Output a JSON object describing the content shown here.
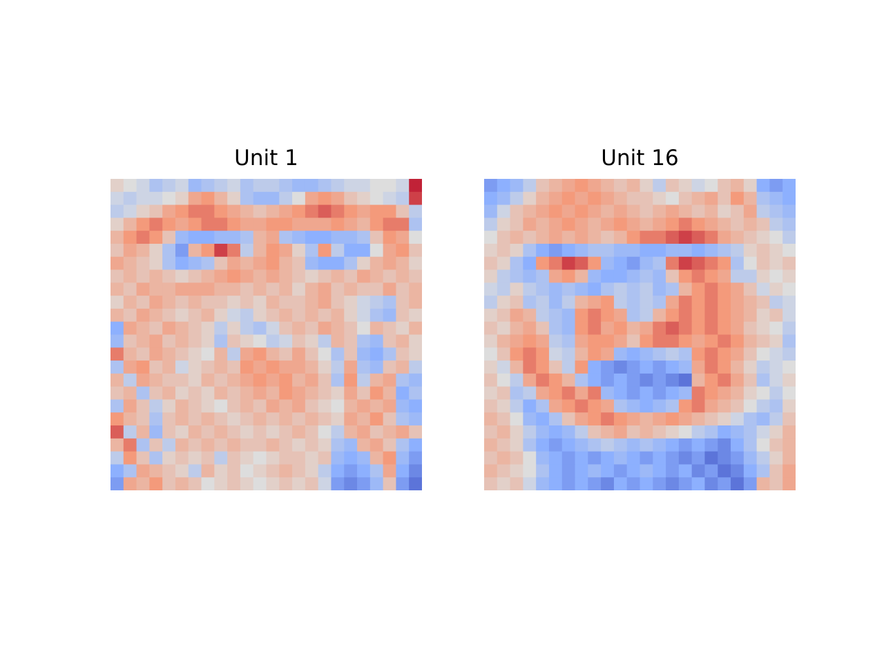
{
  "chart_data": [
    {
      "type": "heatmap",
      "title": "Unit 1",
      "colormap": "coolwarm",
      "grid": false,
      "axes": "off",
      "rows": 24,
      "cols": 24,
      "values": [
        [
          0.1,
          0.0,
          -0.1,
          -0.3,
          -0.2,
          -0.1,
          -0.4,
          -0.3,
          -0.2,
          -0.1,
          -0.3,
          -0.2,
          -0.2,
          -0.3,
          -0.4,
          -0.4,
          -0.3,
          -0.2,
          -0.1,
          -0.1,
          0.0,
          0.0,
          -0.1,
          0.9
        ],
        [
          -0.1,
          -0.2,
          -0.1,
          -0.1,
          0.0,
          0.1,
          0.4,
          0.5,
          0.3,
          0.1,
          -0.3,
          -0.4,
          -0.4,
          -0.2,
          0.0,
          0.4,
          0.5,
          0.4,
          0.2,
          0.1,
          0.0,
          -0.1,
          -0.2,
          0.8
        ],
        [
          -0.2,
          -0.1,
          0.1,
          0.2,
          0.4,
          0.5,
          0.6,
          0.6,
          0.5,
          0.4,
          0.3,
          0.2,
          0.3,
          0.4,
          0.5,
          0.6,
          0.7,
          0.6,
          0.5,
          0.4,
          0.5,
          0.5,
          0.2,
          -0.2
        ],
        [
          0.1,
          0.3,
          0.5,
          0.6,
          0.5,
          0.4,
          0.5,
          0.6,
          0.6,
          0.5,
          0.4,
          0.4,
          0.5,
          0.5,
          0.4,
          0.4,
          0.4,
          0.5,
          0.4,
          0.3,
          0.5,
          0.6,
          0.6,
          -0.3
        ],
        [
          0.3,
          0.5,
          0.6,
          0.5,
          0.2,
          -0.4,
          -0.5,
          -0.5,
          -0.4,
          -0.4,
          -0.3,
          0.3,
          0.4,
          -0.3,
          -0.4,
          -0.5,
          -0.5,
          -0.4,
          -0.4,
          -0.3,
          0.2,
          0.5,
          0.4,
          0.0
        ],
        [
          0.2,
          0.4,
          0.3,
          0.1,
          -0.3,
          -0.6,
          0.3,
          0.5,
          0.8,
          0.6,
          -0.2,
          0.3,
          0.5,
          0.4,
          0.1,
          -0.3,
          0.5,
          -0.2,
          -0.5,
          -0.5,
          0.0,
          0.4,
          0.5,
          0.2
        ],
        [
          0.4,
          0.3,
          0.2,
          0.1,
          -0.3,
          -0.5,
          -0.4,
          -0.3,
          0.2,
          0.4,
          0.3,
          0.4,
          0.5,
          0.3,
          0.2,
          -0.4,
          -0.5,
          -0.5,
          -0.3,
          0.1,
          0.3,
          0.4,
          0.3,
          0.1
        ],
        [
          0.2,
          0.3,
          0.2,
          0.3,
          0.2,
          0.1,
          0.2,
          0.3,
          0.4,
          0.5,
          0.4,
          0.3,
          0.4,
          0.3,
          0.2,
          0.1,
          0.2,
          0.3,
          0.2,
          0.4,
          0.3,
          0.2,
          0.3,
          0.2
        ],
        [
          0.3,
          0.2,
          0.4,
          0.3,
          0.3,
          0.4,
          0.4,
          0.4,
          0.3,
          0.3,
          0.2,
          0.3,
          0.2,
          0.3,
          0.1,
          0.3,
          0.4,
          0.2,
          0.3,
          0.2,
          0.2,
          0.4,
          0.2,
          0.3
        ],
        [
          0.1,
          0.3,
          0.2,
          0.4,
          0.3,
          0.2,
          0.3,
          0.2,
          0.2,
          0.1,
          0.2,
          0.1,
          0.3,
          0.2,
          0.2,
          0.3,
          0.4,
          0.2,
          0.1,
          -0.1,
          -0.2,
          -0.3,
          0.2,
          0.3
        ],
        [
          0.3,
          0.2,
          0.4,
          0.3,
          0.2,
          0.1,
          0.2,
          0.3,
          0.1,
          -0.1,
          -0.2,
          0.1,
          0.2,
          0.3,
          0.2,
          0.3,
          0.2,
          0.3,
          0.1,
          -0.1,
          -0.3,
          -0.4,
          0.2,
          0.1
        ],
        [
          -0.5,
          0.4,
          0.3,
          0.2,
          0.4,
          0.3,
          0.2,
          0.1,
          -0.2,
          0.1,
          -0.2,
          -0.3,
          -0.1,
          0.2,
          0.3,
          0.2,
          0.4,
          0.3,
          0.2,
          0.0,
          0.3,
          0.2,
          0.1,
          0.3
        ],
        [
          -0.4,
          0.2,
          0.3,
          0.4,
          0.2,
          0.3,
          0.2,
          0.1,
          -0.3,
          0.2,
          0.1,
          0.0,
          -0.2,
          -0.1,
          0.2,
          0.1,
          -0.2,
          0.3,
          0.2,
          -0.3,
          -0.4,
          0.2,
          0.3,
          0.1
        ],
        [
          0.6,
          0.3,
          0.2,
          0.4,
          0.3,
          0.2,
          0.1,
          0.0,
          0.3,
          -0.2,
          0.4,
          0.5,
          0.3,
          0.2,
          0.4,
          0.2,
          0.0,
          -0.3,
          0.2,
          -0.4,
          -0.5,
          -0.3,
          0.2,
          0.1
        ],
        [
          -0.3,
          0.4,
          0.5,
          0.2,
          0.3,
          -0.1,
          0.1,
          0.2,
          0.3,
          0.2,
          0.5,
          0.4,
          0.5,
          0.4,
          0.4,
          0.3,
          0.1,
          -0.2,
          0.4,
          -0.3,
          -0.4,
          0.2,
          0.3,
          -0.2
        ],
        [
          0.3,
          -0.2,
          0.4,
          0.3,
          0.2,
          0.2,
          0.1,
          0.3,
          0.2,
          0.3,
          0.4,
          0.5,
          0.4,
          0.5,
          0.3,
          0.4,
          0.2,
          -0.3,
          0.5,
          -0.2,
          0.3,
          0.4,
          -0.3,
          -0.4
        ],
        [
          0.2,
          0.3,
          -0.3,
          0.2,
          0.3,
          0.1,
          0.2,
          0.1,
          0.3,
          0.2,
          0.3,
          0.4,
          0.3,
          0.5,
          0.4,
          0.3,
          0.2,
          0.1,
          0.4,
          0.2,
          0.5,
          0.3,
          -0.5,
          -0.3
        ],
        [
          -0.3,
          0.4,
          0.2,
          -0.2,
          0.1,
          0.3,
          0.2,
          0.1,
          0.0,
          0.2,
          0.3,
          0.2,
          0.4,
          0.3,
          0.4,
          0.2,
          0.1,
          0.0,
          0.3,
          0.4,
          0.3,
          0.4,
          -0.4,
          -0.5
        ],
        [
          0.5,
          0.3,
          0.2,
          -0.3,
          0.2,
          0.3,
          0.2,
          0.3,
          0.2,
          0.1,
          0.2,
          0.3,
          0.2,
          0.3,
          0.2,
          0.3,
          0.2,
          0.1,
          0.4,
          0.3,
          0.5,
          0.2,
          -0.3,
          -0.4
        ],
        [
          0.7,
          -0.2,
          0.3,
          -0.4,
          0.2,
          0.1,
          0.3,
          0.2,
          0.3,
          0.2,
          0.1,
          0.2,
          0.1,
          0.2,
          0.3,
          0.2,
          0.0,
          -0.2,
          0.3,
          0.4,
          0.2,
          0.3,
          0.4,
          0.2
        ],
        [
          0.3,
          0.6,
          -0.3,
          0.2,
          -0.2,
          0.3,
          0.2,
          0.3,
          0.2,
          0.3,
          0.2,
          0.2,
          0.3,
          0.2,
          0.1,
          0.2,
          0.1,
          -0.3,
          -0.4,
          0.3,
          0.4,
          0.2,
          -0.3,
          -0.5
        ],
        [
          -0.2,
          0.5,
          0.2,
          -0.3,
          0.1,
          0.2,
          0.1,
          0.2,
          -0.2,
          0.2,
          0.1,
          0.0,
          0.1,
          0.2,
          0.2,
          0.1,
          0.2,
          -0.4,
          -0.5,
          -0.4,
          0.3,
          0.5,
          -0.4,
          -0.6
        ],
        [
          -0.5,
          -0.3,
          0.4,
          0.3,
          0.2,
          0.1,
          -0.2,
          0.3,
          0.1,
          0.2,
          0.0,
          0.1,
          0.2,
          0.3,
          0.2,
          0.1,
          -0.2,
          -0.5,
          -0.6,
          -0.5,
          -0.3,
          0.4,
          -0.5,
          -0.7
        ],
        [
          -0.6,
          0.4,
          0.3,
          0.5,
          0.2,
          0.3,
          0.2,
          0.0,
          0.1,
          0.2,
          0.1,
          0.0,
          0.1,
          0.2,
          0.1,
          0.2,
          -0.1,
          -0.6,
          -0.7,
          -0.6,
          -0.4,
          0.2,
          -0.6,
          -0.8
        ]
      ]
    },
    {
      "type": "heatmap",
      "title": "Unit 16",
      "colormap": "coolwarm",
      "grid": false,
      "axes": "off",
      "rows": 24,
      "cols": 24,
      "values": [
        [
          -0.6,
          -0.5,
          -0.4,
          -0.2,
          0.2,
          0.3,
          0.4,
          0.5,
          0.4,
          0.3,
          0.2,
          0.3,
          0.1,
          -0.2,
          0.2,
          0.1,
          -0.1,
          0.0,
          0.2,
          0.3,
          0.1,
          -0.5,
          -0.6,
          -0.5
        ],
        [
          -0.5,
          -0.4,
          -0.2,
          0.1,
          0.3,
          0.4,
          0.5,
          0.4,
          0.5,
          0.4,
          0.3,
          0.2,
          0.2,
          0.1,
          0.0,
          0.2,
          0.3,
          0.4,
          0.2,
          0.5,
          0.3,
          -0.3,
          -0.4,
          -0.5
        ],
        [
          -0.4,
          -0.1,
          0.2,
          0.3,
          0.4,
          0.5,
          0.4,
          0.5,
          0.4,
          0.3,
          0.4,
          0.3,
          0.2,
          0.3,
          0.4,
          0.3,
          0.2,
          0.3,
          0.1,
          0.2,
          0.4,
          -0.2,
          -0.3,
          -0.4
        ],
        [
          -0.2,
          0.1,
          0.2,
          0.4,
          0.3,
          0.4,
          0.5,
          0.4,
          0.3,
          0.4,
          0.5,
          0.4,
          0.3,
          0.4,
          0.5,
          0.6,
          0.5,
          0.4,
          0.3,
          0.2,
          0.3,
          0.2,
          -0.2,
          -0.3
        ],
        [
          0.0,
          0.2,
          0.3,
          0.2,
          0.3,
          0.4,
          0.3,
          0.4,
          0.3,
          0.2,
          0.3,
          0.5,
          0.6,
          0.6,
          0.7,
          0.8,
          0.7,
          0.6,
          0.4,
          0.3,
          0.2,
          0.1,
          0.0,
          -0.2
        ],
        [
          0.1,
          0.2,
          0.1,
          -0.3,
          -0.5,
          -0.6,
          -0.5,
          -0.4,
          -0.3,
          -0.3,
          -0.4,
          -0.4,
          -0.5,
          -0.5,
          -0.4,
          -0.4,
          -0.5,
          -0.4,
          -0.3,
          -0.2,
          0.1,
          0.2,
          0.1,
          0.0
        ],
        [
          0.2,
          0.1,
          -0.3,
          -0.5,
          0.5,
          0.6,
          0.8,
          0.7,
          0.5,
          -0.4,
          -0.5,
          -0.6,
          -0.4,
          -0.3,
          0.6,
          0.8,
          0.7,
          0.6,
          0.5,
          -0.3,
          0.0,
          0.2,
          0.1,
          0.2
        ],
        [
          0.1,
          -0.2,
          -0.3,
          -0.4,
          -0.3,
          0.4,
          0.5,
          0.3,
          -0.4,
          -0.5,
          -0.5,
          -0.4,
          -0.3,
          -0.4,
          0.2,
          0.5,
          0.6,
          0.5,
          0.4,
          -0.2,
          -0.2,
          0.1,
          0.0,
          0.1
        ],
        [
          -0.1,
          -0.2,
          0.1,
          -0.2,
          -0.3,
          -0.4,
          -0.3,
          -0.4,
          -0.5,
          -0.3,
          -0.2,
          -0.3,
          -0.2,
          -0.4,
          -0.3,
          0.3,
          0.5,
          0.6,
          0.5,
          0.4,
          0.2,
          -0.1,
          0.1,
          0.0
        ],
        [
          -0.2,
          0.1,
          0.2,
          -0.3,
          -0.2,
          -0.4,
          -0.2,
          0.3,
          0.4,
          0.5,
          -0.2,
          -0.3,
          -0.2,
          -0.3,
          0.4,
          0.6,
          0.5,
          0.6,
          0.5,
          0.4,
          0.3,
          0.2,
          -0.2,
          -0.1
        ],
        [
          0.1,
          0.2,
          0.4,
          0.3,
          -0.2,
          -0.3,
          -0.4,
          0.5,
          0.6,
          0.5,
          0.4,
          -0.3,
          -0.2,
          0.3,
          0.5,
          0.6,
          0.5,
          0.6,
          0.5,
          0.4,
          0.3,
          0.1,
          0.2,
          -0.1
        ],
        [
          0.2,
          0.1,
          0.3,
          0.4,
          0.2,
          -0.3,
          -0.4,
          0.5,
          0.6,
          0.4,
          0.5,
          0.3,
          0.4,
          0.6,
          0.7,
          0.6,
          0.5,
          0.6,
          0.5,
          0.4,
          0.2,
          0.1,
          0.0,
          -0.2
        ],
        [
          0.1,
          0.3,
          0.4,
          0.5,
          0.4,
          -0.2,
          -0.3,
          0.4,
          0.5,
          0.5,
          0.4,
          0.2,
          0.5,
          0.6,
          0.6,
          0.5,
          0.4,
          0.5,
          0.6,
          0.5,
          0.3,
          0.2,
          0.1,
          -0.3
        ],
        [
          0.0,
          0.2,
          0.5,
          0.6,
          0.5,
          -0.1,
          -0.2,
          0.3,
          0.5,
          0.4,
          -0.4,
          -0.5,
          -0.4,
          -0.3,
          -0.2,
          -0.3,
          0.5,
          0.6,
          0.5,
          0.4,
          0.2,
          0.0,
          -0.1,
          -0.2
        ],
        [
          0.1,
          -0.1,
          0.3,
          0.6,
          0.5,
          0.2,
          -0.2,
          0.5,
          -0.5,
          -0.6,
          -0.7,
          -0.6,
          -0.5,
          -0.6,
          -0.5,
          -0.4,
          0.4,
          0.6,
          0.5,
          0.3,
          0.1,
          -0.2,
          -0.1,
          0.0
        ],
        [
          0.2,
          0.0,
          -0.2,
          0.4,
          0.6,
          0.5,
          0.3,
          -0.3,
          -0.5,
          -0.6,
          -0.5,
          -0.6,
          -0.7,
          -0.6,
          -0.7,
          -0.8,
          0.3,
          0.5,
          0.6,
          0.4,
          0.2,
          -0.3,
          -0.1,
          0.1
        ],
        [
          0.1,
          0.2,
          -0.3,
          -0.2,
          0.4,
          0.5,
          0.6,
          0.4,
          0.6,
          -0.4,
          -0.5,
          -0.6,
          -0.5,
          -0.6,
          -0.5,
          -0.4,
          0.6,
          0.5,
          0.4,
          0.3,
          0.1,
          0.0,
          -0.2,
          0.0
        ],
        [
          0.2,
          0.1,
          -0.2,
          -0.5,
          -0.3,
          0.4,
          0.5,
          0.6,
          0.5,
          0.4,
          -0.3,
          -0.4,
          -0.5,
          -0.4,
          -0.3,
          0.5,
          0.6,
          0.4,
          0.3,
          0.2,
          0.0,
          -0.2,
          -0.3,
          0.1
        ],
        [
          0.3,
          0.2,
          0.0,
          -0.4,
          -0.5,
          -0.3,
          0.2,
          0.4,
          0.5,
          0.6,
          0.5,
          0.4,
          0.3,
          0.4,
          0.5,
          0.4,
          0.3,
          0.2,
          0.1,
          -0.1,
          -0.3,
          -0.4,
          -0.2,
          0.2
        ],
        [
          0.2,
          0.3,
          0.1,
          -0.2,
          -0.4,
          -0.5,
          -0.4,
          -0.2,
          0.2,
          0.3,
          0.4,
          0.2,
          0.3,
          0.2,
          0.1,
          0.0,
          -0.2,
          -0.3,
          -0.5,
          -0.4,
          -0.3,
          -0.1,
          0.1,
          0.3
        ],
        [
          0.3,
          0.2,
          0.1,
          -0.3,
          -0.5,
          -0.6,
          -0.5,
          -0.4,
          -0.3,
          -0.2,
          -0.3,
          -0.4,
          -0.3,
          -0.4,
          -0.5,
          -0.6,
          -0.5,
          -0.6,
          -0.7,
          -0.5,
          -0.3,
          0.0,
          0.2,
          0.3
        ],
        [
          0.2,
          0.3,
          0.2,
          0.0,
          -0.4,
          -0.5,
          -0.6,
          -0.5,
          -0.6,
          -0.5,
          -0.4,
          -0.5,
          -0.6,
          -0.5,
          -0.6,
          -0.7,
          -0.6,
          -0.8,
          -0.7,
          -0.6,
          -0.4,
          -0.2,
          0.1,
          0.3
        ],
        [
          0.3,
          0.2,
          0.1,
          0.0,
          -0.3,
          -0.5,
          -0.6,
          -0.5,
          -0.4,
          -0.5,
          -0.6,
          -0.5,
          -0.4,
          -0.5,
          -0.6,
          -0.5,
          -0.7,
          -0.6,
          -0.8,
          -0.7,
          -0.5,
          -0.3,
          0.2,
          0.4
        ],
        [
          0.2,
          0.1,
          0.2,
          -0.1,
          -0.4,
          -0.5,
          -0.6,
          -0.5,
          -0.6,
          -0.7,
          -0.5,
          -0.6,
          -0.5,
          -0.6,
          -0.7,
          -0.6,
          -0.5,
          -0.7,
          -0.6,
          -0.8,
          -0.6,
          0.3,
          0.2,
          0.4
        ]
      ]
    }
  ]
}
